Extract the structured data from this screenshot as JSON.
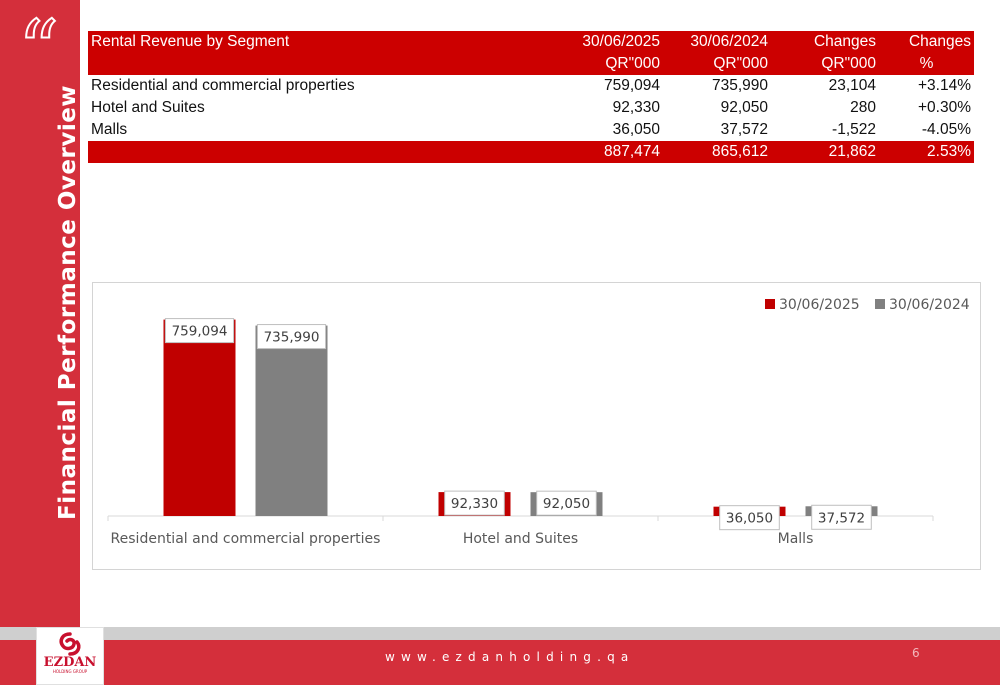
{
  "sidebar": {
    "quote_glyph": "“",
    "title": "Financial Performance Overview"
  },
  "table": {
    "header_row1": [
      "Rental Revenue by Segment",
      "30/06/2025",
      "30/06/2024",
      "Changes",
      "Changes"
    ],
    "header_row2": [
      "",
      "QR\"000",
      "QR\"000",
      "QR\"000",
      "%"
    ],
    "rows": [
      [
        "Residential and commercial properties",
        "759,094",
        "735,990",
        "23,104",
        "+3.14%"
      ],
      [
        "Hotel and Suites",
        "92,330",
        "92,050",
        "280",
        "+0.30%"
      ],
      [
        "Malls",
        "36,050",
        "37,572",
        "-1,522",
        "-4.05%"
      ]
    ],
    "total_row": [
      "",
      "887,474",
      "865,612",
      "21,862",
      "2.53%"
    ]
  },
  "chart_data": {
    "type": "bar",
    "categories": [
      "Residential and commercial properties",
      "Hotel and Suites",
      "Malls"
    ],
    "series": [
      {
        "name": "30/06/2025",
        "values": [
          759094,
          92330,
          36050
        ],
        "labels": [
          "759,094",
          "92,330",
          "36,050"
        ],
        "color": "#c00000"
      },
      {
        "name": "30/06/2024",
        "values": [
          735990,
          92050,
          37572
        ],
        "labels": [
          "735,990",
          "92,050",
          "37,572"
        ],
        "color": "#808080"
      }
    ],
    "ylim": [
      0,
      800000
    ],
    "legend": "top-right",
    "grid": false,
    "title": "",
    "xlabel": "",
    "ylabel": ""
  },
  "footer": {
    "logo_text": "EZDAN",
    "logo_sub": "HOLDING GROUP",
    "url": "www.ezdanholding.qa",
    "page_number": "6"
  },
  "colors": {
    "brand_red": "#d42f3b",
    "table_red": "#cc0000",
    "series_2025": "#c00000",
    "series_2024": "#808080"
  }
}
